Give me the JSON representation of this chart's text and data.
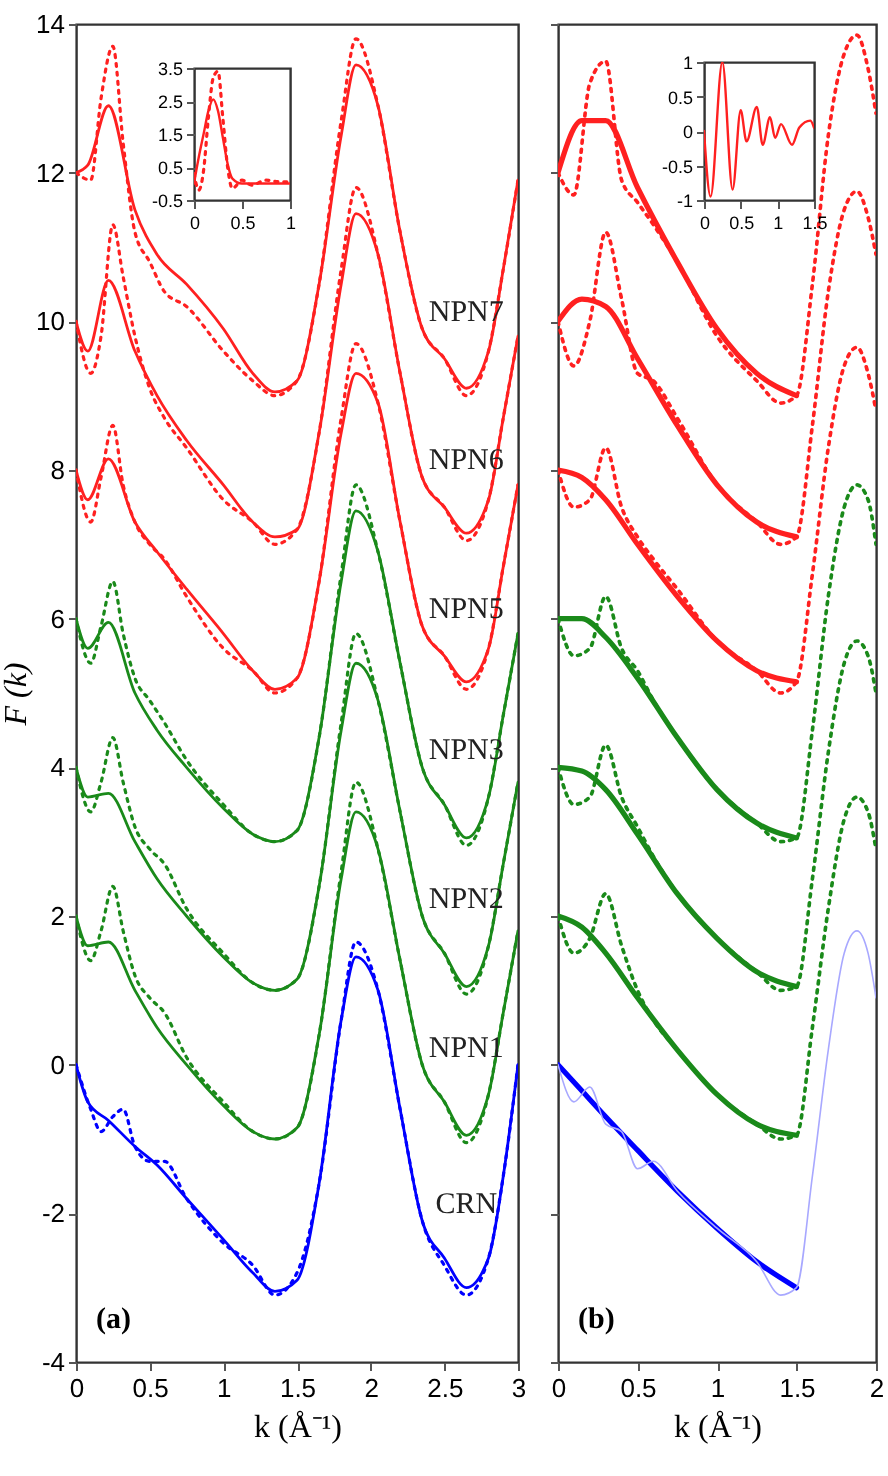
{
  "chart_data": [
    {
      "type": "line",
      "xlabel": "k (Å⁻¹)",
      "ylabel": "F (k)",
      "xlim": [
        0,
        3
      ],
      "ylim": [
        -4,
        14
      ],
      "xticks": [
        0,
        0.5,
        1,
        1.5,
        2,
        2.5,
        3
      ],
      "yticks": [
        -4,
        -2,
        0,
        2,
        4,
        6,
        8,
        10,
        12,
        14
      ],
      "grid": false,
      "x": [
        0,
        0.08,
        0.22,
        0.4,
        0.55,
        0.75,
        1.0,
        1.2,
        1.35,
        1.5,
        1.65,
        1.8,
        1.9,
        2.05,
        2.2,
        2.35,
        2.5,
        2.65,
        2.8,
        2.9,
        3
      ],
      "series": [
        {
          "name": "CRN",
          "color": "#0000ff",
          "line_style": "solid",
          "values": [
            0,
            -0.5,
            -0.75,
            -1.1,
            -1.35,
            -1.8,
            -2.35,
            -2.8,
            -3.05,
            -2.9,
            -1.6,
            0.6,
            1.45,
            1.0,
            -0.6,
            -2.1,
            -2.6,
            -3.0,
            -2.6,
            -1.5,
            0
          ]
        },
        {
          "color": "#0000ff",
          "line_style": "dotted",
          "x": [
            0,
            0.1,
            0.17,
            0.25,
            0.32,
            0.4,
            0.5,
            0.6,
            0.75,
            1.0,
            1.2,
            1.35,
            1.5,
            1.65,
            1.8,
            1.9,
            2.05,
            2.2,
            2.35,
            2.5,
            2.65,
            2.8,
            2.9,
            3
          ],
          "values": [
            0,
            -0.6,
            -0.9,
            -0.7,
            -0.6,
            -1.1,
            -1.3,
            -1.3,
            -1.8,
            -2.4,
            -2.7,
            -3.1,
            -2.8,
            -1.6,
            0.6,
            1.65,
            1.0,
            -0.6,
            -2.1,
            -2.7,
            -3.1,
            -2.6,
            -1.5,
            0
          ]
        },
        {
          "name": "NPN1",
          "color": "#1a8a1a",
          "line_style": "solid",
          "values": [
            2,
            1.6,
            1.65,
            1.0,
            0.5,
            0,
            -0.55,
            -0.9,
            -1.0,
            -0.85,
            0.4,
            2.5,
            3.4,
            2.9,
            1.4,
            0,
            -0.5,
            -0.95,
            -0.4,
            0.7,
            1.8
          ]
        },
        {
          "color": "#1a8a1a",
          "line_style": "dotted",
          "x": [
            0,
            0.1,
            0.17,
            0.25,
            0.32,
            0.4,
            0.5,
            0.6,
            0.75,
            1.0,
            1.2,
            1.35,
            1.5,
            1.65,
            1.8,
            1.9,
            2.05,
            2.2,
            2.35,
            2.5,
            2.65,
            2.8,
            2.9,
            3
          ],
          "values": [
            2,
            1.4,
            1.8,
            2.4,
            1.8,
            1.2,
            0.9,
            0.7,
            0.1,
            -0.5,
            -0.9,
            -1.0,
            -0.85,
            0.4,
            2.6,
            3.8,
            2.9,
            1.4,
            0,
            -0.5,
            -1.05,
            -0.4,
            0.7,
            1.8
          ]
        },
        {
          "name": "NPN2",
          "color": "#1a8a1a",
          "line_style": "solid",
          "values": [
            4,
            3.6,
            3.65,
            3.0,
            2.5,
            2.0,
            1.45,
            1.1,
            1.0,
            1.15,
            2.4,
            4.5,
            5.4,
            4.9,
            3.4,
            2.0,
            1.5,
            1.05,
            1.6,
            2.7,
            3.8
          ]
        },
        {
          "color": "#1a8a1a",
          "line_style": "dotted",
          "x": [
            0,
            0.1,
            0.17,
            0.25,
            0.32,
            0.4,
            0.5,
            0.6,
            0.75,
            1.0,
            1.2,
            1.35,
            1.5,
            1.65,
            1.8,
            1.9,
            2.05,
            2.2,
            2.35,
            2.5,
            2.65,
            2.8,
            2.9,
            3
          ],
          "values": [
            4,
            3.4,
            3.8,
            4.4,
            3.8,
            3.2,
            2.9,
            2.7,
            2.1,
            1.5,
            1.1,
            1.0,
            1.15,
            2.4,
            4.6,
            5.8,
            4.9,
            3.4,
            2.0,
            1.5,
            0.95,
            1.6,
            2.7,
            3.8
          ]
        },
        {
          "name": "NPN3",
          "color": "#1a8a1a",
          "line_style": "solid",
          "values": [
            6,
            5.6,
            5.95,
            5.0,
            4.5,
            4.0,
            3.45,
            3.1,
            3.0,
            3.15,
            4.4,
            6.5,
            7.45,
            6.9,
            5.4,
            4.0,
            3.5,
            3.05,
            3.6,
            4.7,
            5.8
          ]
        },
        {
          "color": "#1a8a1a",
          "line_style": "dotted",
          "x": [
            0,
            0.1,
            0.17,
            0.25,
            0.32,
            0.4,
            0.5,
            0.6,
            0.75,
            1.0,
            1.2,
            1.35,
            1.5,
            1.65,
            1.8,
            1.9,
            2.05,
            2.2,
            2.35,
            2.5,
            2.65,
            2.8,
            2.9,
            3
          ],
          "values": [
            6,
            5.4,
            5.9,
            6.5,
            5.8,
            5.2,
            4.9,
            4.6,
            4.1,
            3.5,
            3.1,
            3.0,
            3.15,
            4.4,
            6.6,
            7.8,
            6.9,
            5.4,
            4.0,
            3.5,
            2.95,
            3.6,
            4.7,
            5.8
          ]
        },
        {
          "name": "NPN5",
          "color": "#ff2020",
          "line_style": "solid",
          "values": [
            8,
            7.6,
            8.15,
            7.3,
            6.9,
            6.4,
            5.8,
            5.3,
            5.05,
            5.2,
            6.5,
            8.5,
            9.3,
            8.9,
            7.3,
            5.9,
            5.5,
            5.15,
            5.6,
            6.7,
            7.8
          ]
        },
        {
          "color": "#ff2020",
          "line_style": "dotted",
          "x": [
            0,
            0.1,
            0.17,
            0.25,
            0.32,
            0.4,
            0.5,
            0.6,
            0.75,
            1.0,
            1.2,
            1.35,
            1.5,
            1.65,
            1.8,
            1.9,
            2.05,
            2.2,
            2.35,
            2.5,
            2.65,
            2.8,
            2.9,
            3
          ],
          "values": [
            8,
            7.3,
            7.9,
            8.6,
            7.8,
            7.3,
            7.0,
            6.8,
            6.3,
            5.6,
            5.3,
            5.0,
            5.2,
            6.5,
            8.7,
            9.7,
            8.9,
            7.3,
            5.9,
            5.5,
            5.05,
            5.6,
            6.7,
            7.8
          ]
        },
        {
          "name": "NPN6",
          "color": "#ff2020",
          "line_style": "solid",
          "values": [
            10,
            9.6,
            10.55,
            9.6,
            9.0,
            8.4,
            7.8,
            7.3,
            7.1,
            7.2,
            8.5,
            10.5,
            11.45,
            10.9,
            9.3,
            7.9,
            7.5,
            7.15,
            7.6,
            8.7,
            9.8
          ]
        },
        {
          "color": "#ff2020",
          "line_style": "dotted",
          "x": [
            0,
            0.1,
            0.17,
            0.25,
            0.32,
            0.4,
            0.5,
            0.6,
            0.75,
            1.0,
            1.2,
            1.35,
            1.5,
            1.65,
            1.8,
            1.9,
            2.05,
            2.2,
            2.35,
            2.5,
            2.65,
            2.8,
            2.9,
            3
          ],
          "values": [
            10,
            9.3,
            9.8,
            11.3,
            10.6,
            9.8,
            9.1,
            8.7,
            8.3,
            7.6,
            7.3,
            7.0,
            7.2,
            8.5,
            10.7,
            11.8,
            10.9,
            9.3,
            7.9,
            7.5,
            7.05,
            7.6,
            8.7,
            9.8
          ]
        },
        {
          "name": "NPN7",
          "color": "#ff2020",
          "line_style": "solid",
          "values": [
            12,
            12.1,
            12.9,
            11.5,
            10.9,
            10.5,
            9.9,
            9.3,
            9.05,
            9.2,
            10.5,
            12.5,
            13.45,
            12.9,
            11.2,
            9.9,
            9.5,
            9.1,
            9.6,
            10.7,
            11.9
          ]
        },
        {
          "color": "#ff2020",
          "line_style": "dotted",
          "x": [
            0,
            0.1,
            0.17,
            0.25,
            0.32,
            0.4,
            0.5,
            0.6,
            0.75,
            1.0,
            1.2,
            1.35,
            1.5,
            1.65,
            1.8,
            1.9,
            2.05,
            2.2,
            2.35,
            2.5,
            2.65,
            2.8,
            2.9,
            3
          ],
          "values": [
            12,
            11.9,
            13.0,
            13.7,
            12.4,
            11.2,
            10.8,
            10.4,
            10.2,
            9.6,
            9.2,
            9.0,
            9.2,
            10.5,
            12.7,
            13.8,
            12.9,
            11.2,
            9.9,
            9.5,
            9.0,
            9.6,
            10.7,
            11.9
          ]
        }
      ],
      "annotations": [
        "(a)"
      ]
    },
    {
      "type": "line",
      "xlim": [
        0,
        1
      ],
      "ylim": [
        -0.5,
        3.5
      ],
      "xticks": [
        0,
        0.5,
        1
      ],
      "yticks": [
        -0.5,
        0.5,
        1.5,
        2.5,
        3.5
      ],
      "grid": false,
      "series": [
        {
          "color": "#ff2020",
          "line_style": "solid",
          "x": [
            0,
            0.05,
            0.1,
            0.15,
            0.2,
            0.25,
            0.3,
            0.35,
            0.4,
            0.5,
            0.7,
            1.0
          ],
          "values": [
            0,
            0.8,
            1.5,
            2.2,
            2.55,
            2.2,
            1.4,
            0.6,
            0.15,
            0,
            0,
            0
          ]
        },
        {
          "color": "#ff2020",
          "line_style": "dotted",
          "x": [
            0,
            0.05,
            0.1,
            0.15,
            0.2,
            0.25,
            0.3,
            0.35,
            0.4,
            0.5,
            0.6,
            0.75,
            0.9,
            1.0
          ],
          "values": [
            0.3,
            -0.2,
            0.4,
            2.0,
            3.2,
            3.4,
            2.0,
            0.5,
            -0.15,
            0.1,
            -0.05,
            0.1,
            0.05,
            0.05
          ]
        }
      ]
    },
    {
      "type": "line",
      "xlabel": "k (Å⁻¹)",
      "xlim": [
        0,
        2
      ],
      "ylim": [
        -4,
        14
      ],
      "xticks": [
        0,
        0.5,
        1,
        1.5,
        2
      ],
      "yticks": [
        -4,
        -2,
        0,
        2,
        4,
        6,
        8,
        10,
        12,
        14
      ],
      "tick_labels": "x",
      "grid": false,
      "x": [
        0,
        0.15,
        0.3,
        0.5,
        0.75,
        1.0,
        1.25,
        1.5
      ],
      "series": [
        {
          "color": "#0000ff",
          "line_style": "solid",
          "values": [
            0,
            -0.35,
            -0.7,
            -1.15,
            -1.7,
            -2.2,
            -2.65,
            -3.0
          ]
        },
        {
          "color": "#a8a8ff",
          "line_style": "solid",
          "x": [
            0,
            0.1,
            0.2,
            0.3,
            0.4,
            0.5,
            0.6,
            0.75,
            1.0,
            1.25,
            1.4,
            1.5,
            1.6,
            1.7,
            1.8,
            1.88,
            1.95,
            2
          ],
          "values": [
            0,
            -0.5,
            -0.3,
            -0.8,
            -0.9,
            -1.4,
            -1.3,
            -1.7,
            -2.2,
            -2.65,
            -3.1,
            -3.0,
            -1.5,
            0.2,
            1.5,
            1.8,
            1.5,
            0.9
          ]
        },
        {
          "color": "#1a8a1a",
          "line_style": "solid",
          "values": [
            2,
            1.85,
            1.5,
            0.9,
            0.2,
            -0.4,
            -0.8,
            -0.95
          ]
        },
        {
          "color": "#1a8a1a",
          "line_style": "dotted",
          "x": [
            0,
            0.1,
            0.2,
            0.3,
            0.4,
            0.5,
            0.6,
            0.75,
            1.0,
            1.25,
            1.4,
            1.5,
            1.6,
            1.7,
            1.8,
            1.88,
            1.95,
            2
          ],
          "values": [
            2,
            1.5,
            1.7,
            2.3,
            1.6,
            1.0,
            0.6,
            0.2,
            -0.4,
            -0.8,
            -1.0,
            -0.95,
            0.5,
            2.1,
            3.3,
            3.6,
            3.4,
            2.9
          ]
        },
        {
          "color": "#1a8a1a",
          "line_style": "solid",
          "values": [
            4,
            3.95,
            3.7,
            3.1,
            2.3,
            1.7,
            1.25,
            1.05
          ]
        },
        {
          "color": "#1a8a1a",
          "line_style": "dotted",
          "x": [
            0,
            0.1,
            0.2,
            0.3,
            0.4,
            0.5,
            0.6,
            0.75,
            1.0,
            1.25,
            1.4,
            1.5,
            1.6,
            1.7,
            1.8,
            1.88,
            1.95,
            2
          ],
          "values": [
            4,
            3.5,
            3.6,
            4.3,
            3.6,
            3.2,
            2.8,
            2.3,
            1.7,
            1.25,
            1.0,
            1.05,
            2.5,
            4.2,
            5.4,
            5.7,
            5.5,
            5.0
          ]
        },
        {
          "color": "#1a8a1a",
          "line_style": "solid",
          "values": [
            6,
            6.0,
            5.75,
            5.2,
            4.4,
            3.7,
            3.25,
            3.05
          ]
        },
        {
          "color": "#1a8a1a",
          "line_style": "dotted",
          "x": [
            0,
            0.1,
            0.2,
            0.3,
            0.4,
            0.5,
            0.6,
            0.75,
            1.0,
            1.25,
            1.4,
            1.5,
            1.6,
            1.7,
            1.8,
            1.88,
            1.95,
            2
          ],
          "values": [
            6,
            5.5,
            5.6,
            6.3,
            5.6,
            5.3,
            4.9,
            4.4,
            3.7,
            3.25,
            3.0,
            3.05,
            4.5,
            6.3,
            7.5,
            7.8,
            7.6,
            7.0
          ]
        },
        {
          "color": "#ff2020",
          "line_style": "solid",
          "values": [
            8,
            7.9,
            7.6,
            7.0,
            6.3,
            5.7,
            5.3,
            5.15
          ]
        },
        {
          "color": "#ff2020",
          "line_style": "dotted",
          "x": [
            0,
            0.1,
            0.2,
            0.3,
            0.4,
            0.5,
            0.6,
            0.75,
            1.0,
            1.25,
            1.4,
            1.5,
            1.6,
            1.7,
            1.8,
            1.88,
            1.95,
            2
          ],
          "values": [
            8,
            7.5,
            7.6,
            8.3,
            7.5,
            7.1,
            6.8,
            6.4,
            5.7,
            5.3,
            5.0,
            5.15,
            6.6,
            8.3,
            9.4,
            9.65,
            9.3,
            8.8
          ]
        },
        {
          "color": "#ff2020",
          "line_style": "solid",
          "values": [
            10,
            10.3,
            10.2,
            9.5,
            8.6,
            7.8,
            7.3,
            7.1
          ]
        },
        {
          "color": "#ff2020",
          "line_style": "dotted",
          "x": [
            0,
            0.1,
            0.2,
            0.3,
            0.4,
            0.5,
            0.6,
            0.75,
            1.0,
            1.25,
            1.4,
            1.5,
            1.6,
            1.7,
            1.8,
            1.88,
            1.95,
            2
          ],
          "values": [
            10,
            9.4,
            10.0,
            11.2,
            10.3,
            9.3,
            9.2,
            8.7,
            7.8,
            7.3,
            7.0,
            7.1,
            8.6,
            10.4,
            11.5,
            11.75,
            11.4,
            10.9
          ]
        },
        {
          "color": "#ff2020",
          "line_style": "solid",
          "values": [
            12,
            12.7,
            12.7,
            11.8,
            10.8,
            9.9,
            9.3,
            9.0
          ]
        },
        {
          "color": "#ff2020",
          "line_style": "dotted",
          "x": [
            0,
            0.1,
            0.2,
            0.3,
            0.4,
            0.5,
            0.6,
            0.75,
            1.0,
            1.25,
            1.4,
            1.5,
            1.6,
            1.7,
            1.8,
            1.88,
            1.95,
            2
          ],
          "values": [
            12,
            11.7,
            13.2,
            13.5,
            11.9,
            11.6,
            11.3,
            10.8,
            9.8,
            9.2,
            8.9,
            9.0,
            10.5,
            12.5,
            13.6,
            13.85,
            13.4,
            12.8
          ]
        }
      ],
      "annotations": [
        "(b)"
      ]
    },
    {
      "type": "line",
      "xlim": [
        0,
        1.5
      ],
      "ylim": [
        -1,
        1
      ],
      "xticks": [
        0,
        0.5,
        1,
        1.5
      ],
      "yticks": [
        -1,
        -0.5,
        0,
        0.5,
        1
      ],
      "grid": false,
      "series": [
        {
          "color": "#ff2020",
          "line_style": "solid",
          "x": [
            0,
            0.09,
            0.25,
            0.39,
            0.5,
            0.58,
            0.72,
            0.8,
            0.9,
            0.97,
            1.05,
            1.2,
            1.3,
            1.45,
            1.5
          ],
          "values": [
            0,
            -0.95,
            1.0,
            -0.85,
            0.3,
            -0.15,
            0.35,
            -0.2,
            0.2,
            -0.1,
            0.1,
            -0.2,
            0.05,
            0.15,
            0.05
          ]
        }
      ]
    }
  ]
}
